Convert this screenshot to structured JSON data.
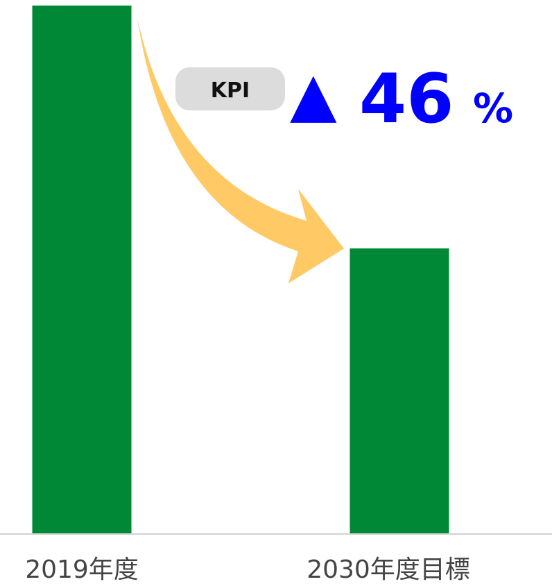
{
  "chart_data": {
    "type": "bar",
    "categories": [
      "2019年度",
      "2030年度目標"
    ],
    "values": [
      100,
      54
    ],
    "color": "#008837",
    "ylim": [
      0,
      100
    ],
    "badge": "KPI",
    "change_symbol": "▲",
    "change_value": "46",
    "change_unit": "%"
  }
}
